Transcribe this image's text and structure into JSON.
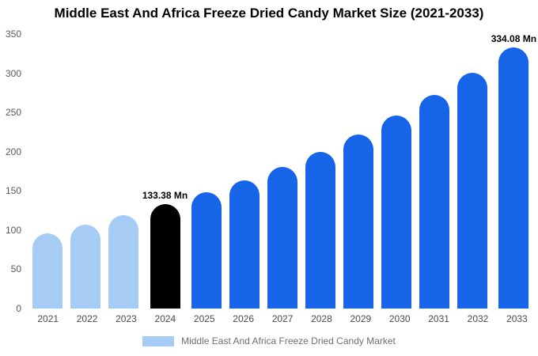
{
  "chart_data": {
    "type": "bar",
    "title": "Middle East And Africa Freeze Dried Candy Market Size (2021-2033)",
    "categories": [
      "2021",
      "2022",
      "2023",
      "2024",
      "2025",
      "2026",
      "2027",
      "2028",
      "2029",
      "2030",
      "2031",
      "2032",
      "2033"
    ],
    "values": [
      96,
      107,
      119,
      133.38,
      148,
      163,
      181,
      200,
      222,
      246,
      272,
      301,
      334.08
    ],
    "bar_colors": [
      "#a6cbf5",
      "#a6cbf5",
      "#a6cbf5",
      "#000000",
      "#1665e8",
      "#1665e8",
      "#1665e8",
      "#1665e8",
      "#1665e8",
      "#1665e8",
      "#1665e8",
      "#1665e8",
      "#1665e8"
    ],
    "annotations": [
      {
        "index": 3,
        "label": "133.38 Mn"
      },
      {
        "index": 12,
        "label": "334.08 Mn"
      }
    ],
    "xlabel": "",
    "ylabel": "",
    "ylim": [
      0,
      350
    ],
    "yticks": [
      0,
      50,
      100,
      150,
      200,
      250,
      300,
      350
    ],
    "grid": false,
    "legend": {
      "label": "Middle East And Africa Freeze Dried Candy Market",
      "swatch_color": "#a6cbf5",
      "position": "bottom"
    },
    "palette": {
      "historical": "#a6cbf5",
      "base_year": "#000000",
      "forecast": "#1665e8",
      "background": "#ffffff"
    }
  }
}
